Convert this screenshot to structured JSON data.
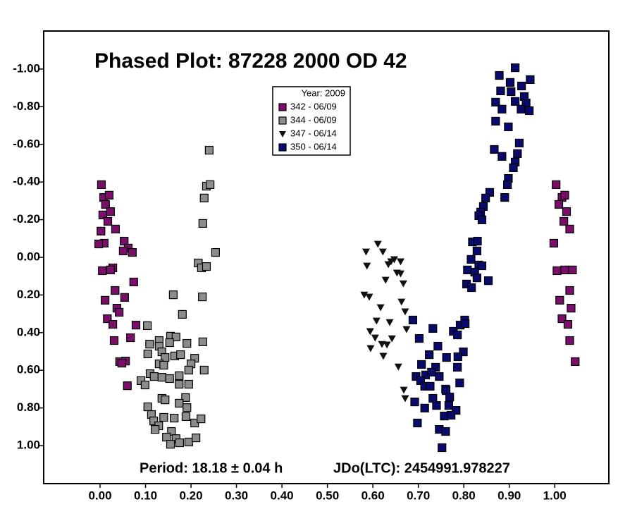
{
  "chart_data": {
    "type": "scatter",
    "title": "Phased Plot: 87228 2000 OD 42",
    "legend_title": "Year: 2009",
    "annotations": [
      "Period: 18.18 ± 0.04 h",
      "JDo(LTC): 2454991.978227"
    ],
    "xlim": [
      -0.124,
      1.119
    ],
    "ylim": [
      -1.202,
      1.202
    ],
    "y_inverted": true,
    "xticks": [
      {
        "value": 0,
        "label": "0.00"
      },
      {
        "value": 0.1,
        "label": "0.10"
      },
      {
        "value": 0.2,
        "label": "0.20"
      },
      {
        "value": 0.3,
        "label": "0.30"
      },
      {
        "value": 0.4,
        "label": "0.40"
      },
      {
        "value": 0.5,
        "label": "0.50"
      },
      {
        "value": 0.6,
        "label": "0.60"
      },
      {
        "value": 0.7,
        "label": "0.70"
      },
      {
        "value": 0.8,
        "label": "0.80"
      },
      {
        "value": 0.9,
        "label": "0.90"
      },
      {
        "value": 1,
        "label": "1.00"
      }
    ],
    "yticks": [
      {
        "value": -1,
        "label": "-1.00"
      },
      {
        "value": -0.8,
        "label": "-0.80"
      },
      {
        "value": -0.6,
        "label": "-0.60"
      },
      {
        "value": -0.4,
        "label": "-0.40"
      },
      {
        "value": -0.2,
        "label": "-0.20"
      },
      {
        "value": 0,
        "label": "0.00"
      },
      {
        "value": 0.2,
        "label": "0.20"
      },
      {
        "value": 0.4,
        "label": "0.40"
      },
      {
        "value": 0.6,
        "label": "0.60"
      },
      {
        "value": 0.8,
        "label": "0.80"
      },
      {
        "value": 1,
        "label": "1.00"
      }
    ],
    "series": [
      {
        "name": "342 - 06/09",
        "color": "#7a0e6a",
        "marker": "square",
        "x": [
          0.003,
          0.008,
          0.02,
          0.012,
          0.006,
          0.023,
          0.017,
          0.002,
          0.034,
          0.009,
          0.053,
          0.062,
          0.051,
          0.071,
          0.028,
          0.023,
          0.005,
          0.033,
          0.011,
          0.037,
          0.054,
          0.042,
          0.074,
          0.016,
          0.028,
          0.079,
          0.067,
          0.031,
          0.043,
          0.056,
          0.048,
          0.06,
          -0.003,
          1.003,
          1.016,
          1.022,
          1.009,
          1.026,
          1.02,
          1.033,
          0.998,
          1.005,
          1.022,
          1.039,
          1.033,
          1.011,
          1.036,
          1.016,
          1.029,
          1.033,
          1.045
        ],
        "values": [
          -0.386,
          -0.318,
          -0.33,
          -0.281,
          -0.225,
          -0.243,
          -0.191,
          -0.139,
          -0.15,
          -0.075,
          -0.086,
          -0.049,
          -0.034,
          -0.026,
          0.056,
          0.067,
          0.071,
          0.176,
          0.228,
          0.27,
          0.213,
          0.292,
          0.131,
          0.326,
          0.356,
          0.36,
          0.427,
          0.442,
          0.554,
          0.551,
          0.562,
          0.682,
          -0.071,
          -0.386,
          -0.318,
          -0.33,
          -0.281,
          -0.243,
          -0.191,
          -0.15,
          -0.075,
          0.071,
          0.067,
          0.067,
          0.176,
          0.228,
          0.27,
          0.326,
          0.356,
          0.442,
          0.554
        ]
      },
      {
        "name": "344 - 06/09",
        "color": "#8c8c8c",
        "marker": "square",
        "x": [
          0.24,
          0.234,
          0.242,
          0.229,
          0.226,
          0.254,
          0.216,
          0.223,
          0.234,
          0.225,
          0.161,
          0.181,
          0.226,
          0.104,
          0.13,
          0.155,
          0.167,
          0.109,
          0.13,
          0.153,
          0.191,
          0.105,
          0.136,
          0.143,
          0.164,
          0.177,
          0.208,
          0.13,
          0.14,
          0.2,
          0.195,
          0.229,
          0.11,
          0.119,
          0.174,
          0.09,
          0.099,
          0.136,
          0.153,
          0.174,
          0.195,
          0.136,
          0.143,
          0.188,
          0.105,
          0.174,
          0.191,
          0.113,
          0.14,
          0.163,
          0.189,
          0.208,
          0.222,
          0.118,
          0.129,
          0.121,
          0.157,
          0.167,
          0.146,
          0.175,
          0.195,
          0.211,
          0.155
        ],
        "values": [
          -0.569,
          -0.378,
          -0.386,
          -0.315,
          -0.18,
          -0.026,
          0.03,
          0.056,
          0.049,
          0.21,
          0.199,
          0.303,
          0.449,
          0.363,
          0.442,
          0.419,
          0.423,
          0.461,
          0.472,
          0.453,
          0.457,
          0.513,
          0.502,
          0.532,
          0.524,
          0.517,
          0.536,
          0.566,
          0.573,
          0.566,
          0.599,
          0.599,
          0.618,
          0.633,
          0.629,
          0.655,
          0.678,
          0.637,
          0.644,
          0.674,
          0.674,
          0.749,
          0.757,
          0.745,
          0.794,
          0.775,
          0.798,
          0.835,
          0.85,
          0.854,
          0.846,
          0.88,
          0.858,
          0.869,
          0.895,
          0.914,
          0.925,
          0.963,
          0.955,
          0.985,
          0.981,
          0.959,
          0.993
        ]
      },
      {
        "name": "347 - 06/14",
        "color": "#111111",
        "marker": "triangle",
        "x": [
          0.585,
          0.611,
          0.622,
          0.647,
          0.587,
          0.634,
          0.64,
          0.653,
          0.661,
          0.661,
          0.628,
          0.667,
          0.581,
          0.592,
          0.617,
          0.663,
          0.637,
          0.671,
          0.608,
          0.594,
          0.605,
          0.62,
          0.631,
          0.642,
          0.674,
          0.595,
          0.623,
          0.656,
          0.668,
          0.671
        ],
        "values": [
          -0.03,
          -0.071,
          -0.03,
          0.011,
          0.045,
          0.037,
          0.022,
          0.082,
          0.086,
          0.022,
          0.12,
          0.139,
          0.199,
          0.21,
          0.266,
          0.236,
          0.345,
          0.288,
          0.337,
          0.393,
          0.427,
          0.461,
          0.464,
          0.431,
          0.382,
          0.483,
          0.524,
          0.581,
          0.704,
          0.749
        ]
      },
      {
        "name": "350 - 06/14",
        "color": "#0a0a6e",
        "marker": "square",
        "x": [
          0.913,
          0.878,
          0.902,
          0.946,
          0.927,
          0.881,
          0.904,
          0.933,
          0.87,
          0.913,
          0.937,
          0.884,
          0.926,
          0.944,
          0.87,
          0.898,
          0.922,
          0.867,
          0.884,
          0.918,
          0.913,
          0.909,
          0.898,
          0.896,
          0.89,
          0.857,
          0.848,
          0.843,
          0.837,
          0.833,
          0.84,
          0.819,
          0.83,
          0.829,
          0.816,
          0.833,
          0.808,
          0.84,
          0.824,
          0.829,
          0.854,
          0.806,
          0.817,
          0.802,
          0.792,
          0.803,
          0.777,
          0.786,
          0.732,
          0.702,
          0.743,
          0.799,
          0.787,
          0.724,
          0.762,
          0.786,
          0.738,
          0.707,
          0.716,
          0.729,
          0.746,
          0.695,
          0.705,
          0.714,
          0.726,
          0.76,
          0.791,
          0.732,
          0.761,
          0.769,
          0.692,
          0.714,
          0.74,
          0.767,
          0.783,
          0.757,
          0.772,
          0.698,
          0.746,
          0.76,
          0.752,
          0.688
        ],
        "values": [
          -1.007,
          -0.966,
          -0.929,
          -0.944,
          -0.91,
          -0.884,
          -0.88,
          -0.854,
          -0.824,
          -0.828,
          -0.82,
          -0.787,
          -0.787,
          -0.779,
          -0.723,
          -0.693,
          -0.607,
          -0.573,
          -0.536,
          -0.551,
          -0.506,
          -0.476,
          -0.419,
          -0.386,
          -0.318,
          -0.345,
          -0.315,
          -0.27,
          -0.24,
          -0.221,
          -0.199,
          -0.082,
          -0.086,
          -0.034,
          0.011,
          0.041,
          0.067,
          0.045,
          0.079,
          0.109,
          0.124,
          0.142,
          0.161,
          0.333,
          0.36,
          0.352,
          0.393,
          0.412,
          0.378,
          0.431,
          0.472,
          0.502,
          0.528,
          0.517,
          0.532,
          0.584,
          0.584,
          0.569,
          0.625,
          0.61,
          0.633,
          0.633,
          0.655,
          0.685,
          0.685,
          0.7,
          0.667,
          0.749,
          0.708,
          0.742,
          0.768,
          0.801,
          0.787,
          0.787,
          0.813,
          0.843,
          0.839,
          0.88,
          0.914,
          0.925,
          1.011,
          0.333
        ]
      }
    ]
  }
}
